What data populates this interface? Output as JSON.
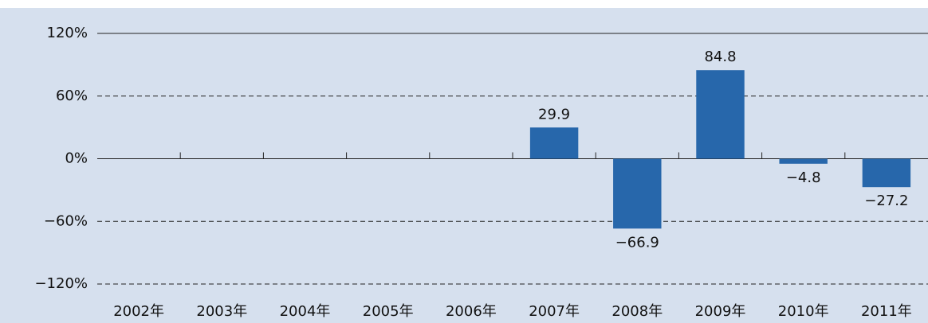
{
  "chart_data": {
    "type": "bar",
    "categories": [
      "2002年",
      "2003年",
      "2004年",
      "2005年",
      "2006年",
      "2007年",
      "2008年",
      "2009年",
      "2010年",
      "2011年"
    ],
    "values": [
      null,
      null,
      null,
      null,
      null,
      29.9,
      -66.9,
      84.8,
      -4.8,
      -27.2
    ],
    "value_labels": [
      null,
      null,
      null,
      null,
      null,
      "29.9",
      "−66.9",
      "84.8",
      "−4.8",
      "−27.2"
    ],
    "color": "#2767ab",
    "ylim": [
      -120,
      120
    ],
    "yticks": [
      {
        "value": -120,
        "label": "−120%"
      },
      {
        "value": -60,
        "label": "−60%"
      },
      {
        "value": 0,
        "label": "0%"
      },
      {
        "value": 60,
        "label": "60%"
      },
      {
        "value": 120,
        "label": "120%"
      }
    ],
    "grid": true
  }
}
